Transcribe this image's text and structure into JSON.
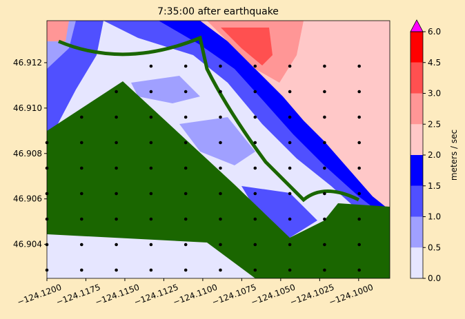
{
  "chart_data": {
    "type": "contour",
    "title": "7:35:00 after earthquake",
    "xlim": [
      -124.12,
      -124.098
    ],
    "ylim": [
      46.9025,
      46.91385
    ],
    "xticks": [
      {
        "value": -124.12,
        "label": "−124.1200"
      },
      {
        "value": -124.1175,
        "label": "−124.1175"
      },
      {
        "value": -124.115,
        "label": "−124.1150"
      },
      {
        "value": -124.1125,
        "label": "−124.1125"
      },
      {
        "value": -124.11,
        "label": "−124.1100"
      },
      {
        "value": -124.1075,
        "label": "−124.1075"
      },
      {
        "value": -124.105,
        "label": "−124.1050"
      },
      {
        "value": -124.1025,
        "label": "−124.1025"
      },
      {
        "value": -124.1,
        "label": "−124.1000"
      }
    ],
    "yticks": [
      46.904,
      46.906,
      46.908,
      {
        "value": 46.91,
        "label": "46.910"
      },
      46.912
    ],
    "colorbar": {
      "label": "meters / sec",
      "ticks": [
        {
          "value": 0,
          "label": "0.0"
        },
        {
          "value": 0.5,
          "label": "0.5"
        },
        {
          "value": 1,
          "label": "1.0"
        },
        {
          "value": 1.5,
          "label": "1.5"
        },
        {
          "value": 2,
          "label": "2.0"
        },
        {
          "value": 2.5,
          "label": "2.5"
        },
        {
          "value": 3,
          "label": "3.0"
        },
        {
          "value": 4.5,
          "label": "4.5"
        },
        {
          "value": 6,
          "label": "6.0"
        }
      ],
      "colors": [
        "#e6e6ff",
        "#a0a0ff",
        "#5050ff",
        "#0000ff",
        "#ffc8c8",
        "#ff9696",
        "#ff5050",
        "#ff0000"
      ],
      "extend_color": "#ff00ff"
    }
  }
}
